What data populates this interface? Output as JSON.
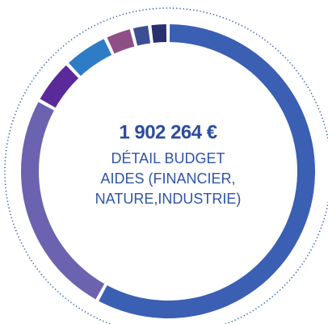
{
  "chart_data": {
    "type": "donut",
    "title": "1 902 264 €",
    "subtitle": [
      "DÉTAIL BUDGET",
      "AIDES (FINANCIER,",
      "NATURE,INDUSTRIE)"
    ],
    "values": [
      58,
      25,
      5,
      5,
      3,
      2,
      2
    ],
    "colors": [
      "#3a5fb3",
      "#6b63b0",
      "#5a2a9a",
      "#2f7cc6",
      "#8e4f86",
      "#3b4f92",
      "#2a2f72"
    ]
  }
}
